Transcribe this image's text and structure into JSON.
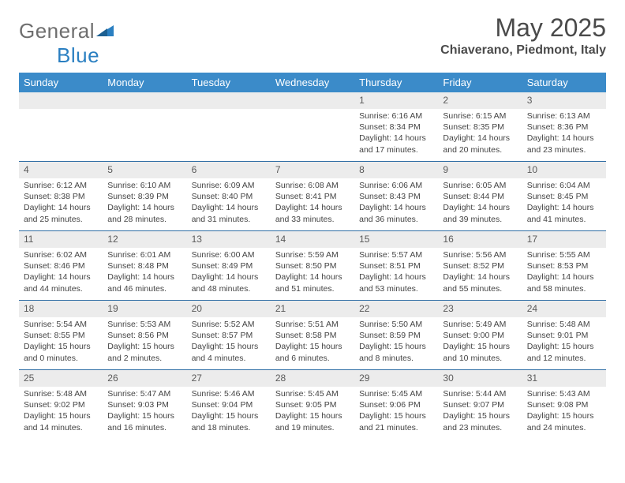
{
  "brand": {
    "part1": "General",
    "part2": "Blue"
  },
  "title": "May 2025",
  "location": "Chiaverano, Piedmont, Italy",
  "dow": [
    "Sunday",
    "Monday",
    "Tuesday",
    "Wednesday",
    "Thursday",
    "Friday",
    "Saturday"
  ],
  "colors": {
    "header_bg": "#3b8bc9",
    "header_text": "#ffffff",
    "daynum_bg": "#ececec",
    "daynum_text": "#5a5a5a",
    "rule": "#2e6da4",
    "body_text": "#444444",
    "title_text": "#4a4a4a",
    "logo_gray": "#6e6e6e",
    "logo_blue": "#2a7fc1"
  },
  "weeks": [
    [
      null,
      null,
      null,
      null,
      {
        "n": "1",
        "sr": "6:16 AM",
        "ss": "8:34 PM",
        "dl": "14 hours and 17 minutes."
      },
      {
        "n": "2",
        "sr": "6:15 AM",
        "ss": "8:35 PM",
        "dl": "14 hours and 20 minutes."
      },
      {
        "n": "3",
        "sr": "6:13 AM",
        "ss": "8:36 PM",
        "dl": "14 hours and 23 minutes."
      }
    ],
    [
      {
        "n": "4",
        "sr": "6:12 AM",
        "ss": "8:38 PM",
        "dl": "14 hours and 25 minutes."
      },
      {
        "n": "5",
        "sr": "6:10 AM",
        "ss": "8:39 PM",
        "dl": "14 hours and 28 minutes."
      },
      {
        "n": "6",
        "sr": "6:09 AM",
        "ss": "8:40 PM",
        "dl": "14 hours and 31 minutes."
      },
      {
        "n": "7",
        "sr": "6:08 AM",
        "ss": "8:41 PM",
        "dl": "14 hours and 33 minutes."
      },
      {
        "n": "8",
        "sr": "6:06 AM",
        "ss": "8:43 PM",
        "dl": "14 hours and 36 minutes."
      },
      {
        "n": "9",
        "sr": "6:05 AM",
        "ss": "8:44 PM",
        "dl": "14 hours and 39 minutes."
      },
      {
        "n": "10",
        "sr": "6:04 AM",
        "ss": "8:45 PM",
        "dl": "14 hours and 41 minutes."
      }
    ],
    [
      {
        "n": "11",
        "sr": "6:02 AM",
        "ss": "8:46 PM",
        "dl": "14 hours and 44 minutes."
      },
      {
        "n": "12",
        "sr": "6:01 AM",
        "ss": "8:48 PM",
        "dl": "14 hours and 46 minutes."
      },
      {
        "n": "13",
        "sr": "6:00 AM",
        "ss": "8:49 PM",
        "dl": "14 hours and 48 minutes."
      },
      {
        "n": "14",
        "sr": "5:59 AM",
        "ss": "8:50 PM",
        "dl": "14 hours and 51 minutes."
      },
      {
        "n": "15",
        "sr": "5:57 AM",
        "ss": "8:51 PM",
        "dl": "14 hours and 53 minutes."
      },
      {
        "n": "16",
        "sr": "5:56 AM",
        "ss": "8:52 PM",
        "dl": "14 hours and 55 minutes."
      },
      {
        "n": "17",
        "sr": "5:55 AM",
        "ss": "8:53 PM",
        "dl": "14 hours and 58 minutes."
      }
    ],
    [
      {
        "n": "18",
        "sr": "5:54 AM",
        "ss": "8:55 PM",
        "dl": "15 hours and 0 minutes."
      },
      {
        "n": "19",
        "sr": "5:53 AM",
        "ss": "8:56 PM",
        "dl": "15 hours and 2 minutes."
      },
      {
        "n": "20",
        "sr": "5:52 AM",
        "ss": "8:57 PM",
        "dl": "15 hours and 4 minutes."
      },
      {
        "n": "21",
        "sr": "5:51 AM",
        "ss": "8:58 PM",
        "dl": "15 hours and 6 minutes."
      },
      {
        "n": "22",
        "sr": "5:50 AM",
        "ss": "8:59 PM",
        "dl": "15 hours and 8 minutes."
      },
      {
        "n": "23",
        "sr": "5:49 AM",
        "ss": "9:00 PM",
        "dl": "15 hours and 10 minutes."
      },
      {
        "n": "24",
        "sr": "5:48 AM",
        "ss": "9:01 PM",
        "dl": "15 hours and 12 minutes."
      }
    ],
    [
      {
        "n": "25",
        "sr": "5:48 AM",
        "ss": "9:02 PM",
        "dl": "15 hours and 14 minutes."
      },
      {
        "n": "26",
        "sr": "5:47 AM",
        "ss": "9:03 PM",
        "dl": "15 hours and 16 minutes."
      },
      {
        "n": "27",
        "sr": "5:46 AM",
        "ss": "9:04 PM",
        "dl": "15 hours and 18 minutes."
      },
      {
        "n": "28",
        "sr": "5:45 AM",
        "ss": "9:05 PM",
        "dl": "15 hours and 19 minutes."
      },
      {
        "n": "29",
        "sr": "5:45 AM",
        "ss": "9:06 PM",
        "dl": "15 hours and 21 minutes."
      },
      {
        "n": "30",
        "sr": "5:44 AM",
        "ss": "9:07 PM",
        "dl": "15 hours and 23 minutes."
      },
      {
        "n": "31",
        "sr": "5:43 AM",
        "ss": "9:08 PM",
        "dl": "15 hours and 24 minutes."
      }
    ]
  ],
  "labels": {
    "sunrise": "Sunrise:",
    "sunset": "Sunset:",
    "daylight": "Daylight:"
  }
}
